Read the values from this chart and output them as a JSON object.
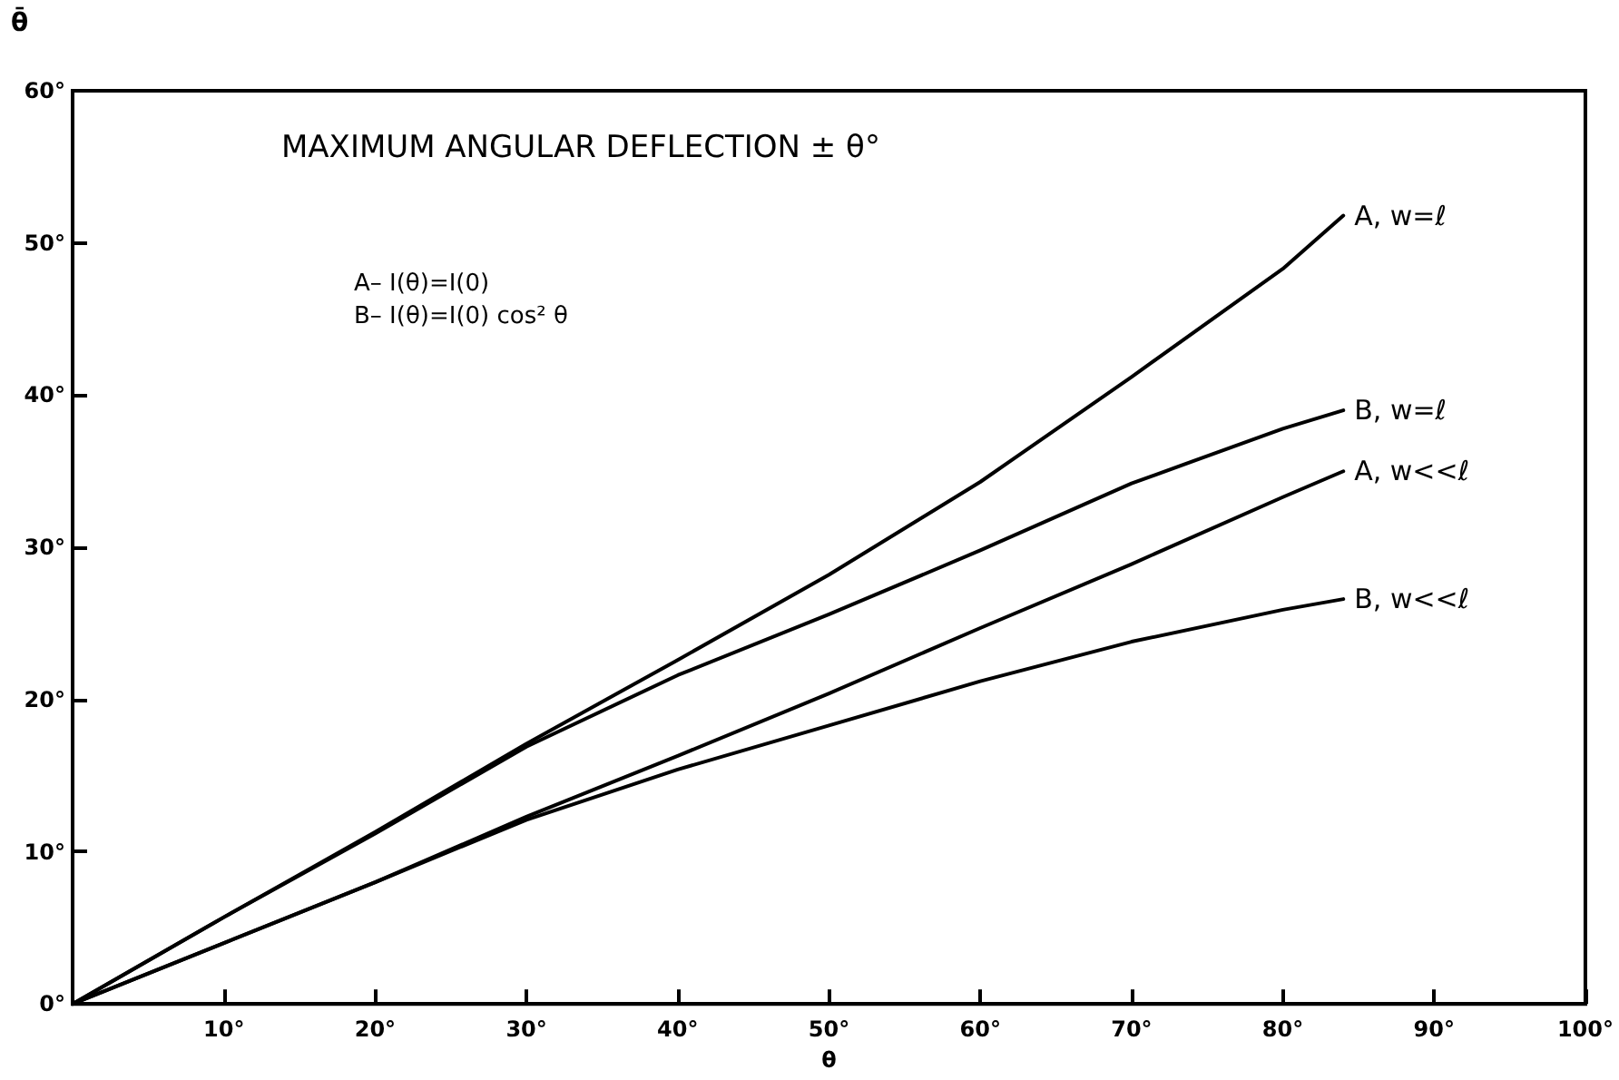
{
  "chart_data": {
    "type": "line",
    "title": "MAXIMUM ANGULAR DEFLECTION ± θ°",
    "annotations": [
      "A– I(θ)=I(0)",
      "B– I(θ)=I(0) cos² θ"
    ],
    "xlabel": "θ",
    "ylabel": "θ̄",
    "xlim": [
      0,
      100
    ],
    "xticks": [
      {
        "value": 0,
        "label": null
      },
      {
        "value": 10,
        "label": "10°"
      },
      {
        "value": 20,
        "label": "20°"
      },
      {
        "value": 30,
        "label": "30°"
      },
      {
        "value": 40,
        "label": "40°"
      },
      {
        "value": 50,
        "label": "50°"
      },
      {
        "value": 60,
        "label": "60°"
      },
      {
        "value": 70,
        "label": "70°"
      },
      {
        "value": 80,
        "label": "80°"
      },
      {
        "value": 90,
        "label": "90°"
      },
      {
        "value": 100,
        "label": "100°"
      }
    ],
    "ylim": [
      0,
      60
    ],
    "yticks": [
      {
        "value": 0,
        "label": "0°"
      },
      {
        "value": 10,
        "label": "10°"
      },
      {
        "value": 20,
        "label": "20°"
      },
      {
        "value": 30,
        "label": "30°"
      },
      {
        "value": 40,
        "label": "40°"
      },
      {
        "value": 50,
        "label": "50°"
      },
      {
        "value": 60,
        "label": "60°"
      }
    ],
    "x": [
      0,
      10,
      20,
      30,
      40,
      50,
      60,
      70,
      80,
      84
    ],
    "series": [
      {
        "name": "A, w=ℓ",
        "color": "#000000",
        "values": [
          0,
          5.7,
          11.3,
          17.1,
          22.6,
          28.2,
          34.3,
          41.2,
          48.3,
          51.8
        ]
      },
      {
        "name": "B, w=ℓ",
        "color": "#000000",
        "values": [
          0,
          5.7,
          11.2,
          16.9,
          21.6,
          25.6,
          29.8,
          34.2,
          37.8,
          39.0
        ]
      },
      {
        "name": "A, w<<ℓ",
        "color": "#000000",
        "values": [
          0,
          4.0,
          8.0,
          12.3,
          16.3,
          20.4,
          24.7,
          28.9,
          33.3,
          35.0
        ]
      },
      {
        "name": "B, w<<ℓ",
        "color": "#000000",
        "values": [
          0,
          4.0,
          8.0,
          12.1,
          15.4,
          18.3,
          21.2,
          23.8,
          25.9,
          26.6
        ]
      }
    ],
    "grid": false,
    "legend": false,
    "marker": "none",
    "line_style": "solid"
  }
}
